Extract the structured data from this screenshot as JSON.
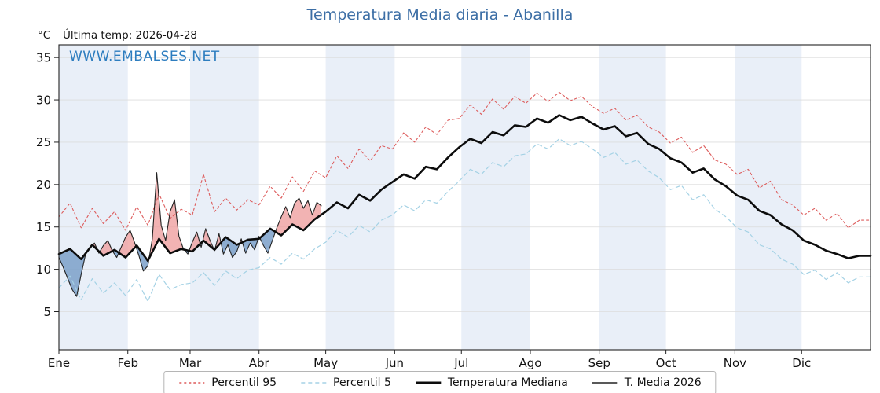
{
  "title": "Temperatura Media diaria - Abanilla",
  "unit_label": "°C",
  "last_temp_label": "Última temp: 2026-04-28",
  "watermark": "WWW.EMBALSES.NET",
  "colors": {
    "title": "#3c6ea5",
    "watermark": "#2d7dbf",
    "p95": "#dd5c5c",
    "p5": "#a5d2e5",
    "median": "#0c0c0c",
    "t2026": "#222222",
    "fill_above": "#efa0a0",
    "fill_below": "#7ba0c9",
    "month_band": "#e9eff8",
    "grid": "#dcdcdc",
    "spine": "#222222"
  },
  "chart_data": {
    "type": "line",
    "title": "Temperatura Media diaria - Abanilla",
    "xlabel": "",
    "ylabel": "°C",
    "ylim": [
      0.5,
      36.5
    ],
    "yticks": [
      5,
      10,
      15,
      20,
      25,
      30,
      35
    ],
    "grid": true,
    "legend_position": "bottom",
    "x_unit": "day_of_year",
    "days_total": 365,
    "month_labels": [
      "Ene",
      "Feb",
      "Mar",
      "Abr",
      "May",
      "Jun",
      "Jul",
      "Ago",
      "Sep",
      "Oct",
      "Nov",
      "Dic"
    ],
    "month_start_days": [
      0,
      31,
      59,
      90,
      120,
      151,
      181,
      212,
      243,
      273,
      304,
      334
    ],
    "series": [
      {
        "name": "Percentil 95",
        "key": "p95",
        "x_start": 0,
        "x_step": 5,
        "values": [
          16.2,
          17.8,
          14.9,
          17.2,
          15.4,
          16.8,
          14.6,
          17.4,
          15.2,
          18.9,
          16.0,
          17.1,
          16.4,
          21.2,
          16.8,
          18.4,
          17.0,
          18.2,
          17.6,
          19.8,
          18.4,
          20.9,
          19.2,
          21.6,
          20.8,
          23.4,
          21.9,
          24.2,
          22.8,
          24.6,
          24.2,
          26.1,
          25.0,
          26.8,
          25.9,
          27.6,
          27.8,
          29.4,
          28.3,
          30.1,
          28.9,
          30.4,
          29.6,
          30.8,
          29.8,
          30.9,
          29.9,
          30.4,
          29.2,
          28.4,
          29.0,
          27.6,
          28.2,
          26.8,
          26.2,
          24.9,
          25.6,
          23.8,
          24.6,
          22.9,
          22.4,
          21.2,
          21.8,
          19.6,
          20.4,
          18.2,
          17.6,
          16.4,
          17.2,
          15.8,
          16.6,
          14.9,
          15.8
        ]
      },
      {
        "name": "Percentil 5",
        "key": "p5",
        "x_start": 0,
        "x_step": 5,
        "values": [
          7.8,
          9.2,
          6.4,
          8.9,
          7.2,
          8.4,
          6.9,
          8.8,
          6.2,
          9.4,
          7.6,
          8.2,
          8.4,
          9.6,
          8.1,
          9.8,
          8.9,
          9.9,
          10.2,
          11.4,
          10.6,
          11.9,
          11.2,
          12.4,
          13.2,
          14.6,
          13.8,
          15.2,
          14.4,
          15.8,
          16.4,
          17.6,
          16.9,
          18.2,
          17.8,
          19.2,
          20.4,
          21.8,
          21.2,
          22.6,
          22.1,
          23.4,
          23.6,
          24.8,
          24.2,
          25.4,
          24.6,
          25.1,
          24.2,
          23.2,
          23.8,
          22.4,
          22.9,
          21.6,
          20.8,
          19.4,
          19.9,
          18.2,
          18.8,
          17.1,
          16.2,
          14.9,
          14.4,
          12.9,
          12.4,
          11.2,
          10.6,
          9.4,
          9.9,
          8.8,
          9.6,
          8.4,
          9.1
        ]
      },
      {
        "name": "Temperatura Mediana",
        "key": "median",
        "x_start": 0,
        "x_step": 5,
        "values": [
          11.8,
          12.4,
          11.2,
          12.9,
          11.6,
          12.3,
          11.4,
          12.8,
          11.0,
          13.6,
          11.9,
          12.4,
          12.1,
          13.4,
          12.3,
          13.8,
          12.9,
          13.5,
          13.6,
          14.8,
          14.0,
          15.3,
          14.6,
          15.9,
          16.8,
          17.9,
          17.2,
          18.8,
          18.1,
          19.4,
          20.3,
          21.2,
          20.7,
          22.1,
          21.8,
          23.2,
          24.4,
          25.4,
          24.9,
          26.2,
          25.8,
          27.0,
          26.8,
          27.8,
          27.3,
          28.2,
          27.6,
          28.0,
          27.2,
          26.5,
          26.9,
          25.7,
          26.1,
          24.8,
          24.2,
          23.1,
          22.6,
          21.4,
          21.9,
          20.6,
          19.8,
          18.7,
          18.2,
          16.9,
          16.4,
          15.3,
          14.6,
          13.4,
          12.9,
          12.2,
          11.8,
          11.3,
          11.6
        ]
      },
      {
        "name": "T. Media 2026",
        "key": "t2026",
        "x_start": 0,
        "x_step": 2,
        "values": [
          11.4,
          10.2,
          8.9,
          7.6,
          6.8,
          9.4,
          11.8,
          12.6,
          13.1,
          11.9,
          12.8,
          13.4,
          12.2,
          11.4,
          12.6,
          13.8,
          14.6,
          13.2,
          11.6,
          9.8,
          10.4,
          13.6,
          21.4,
          15.2,
          13.4,
          16.8,
          18.2,
          13.9,
          12.4,
          11.8,
          13.2,
          14.4,
          12.6,
          14.8,
          13.4,
          12.2,
          14.2,
          11.8,
          12.9,
          11.4,
          12.1,
          13.6,
          11.9,
          13.1,
          12.3,
          13.9,
          12.8,
          11.9,
          13.4,
          14.9,
          16.2,
          17.4,
          16.1,
          17.8,
          18.4,
          17.2,
          18.1,
          16.4,
          17.9,
          17.5
        ]
      }
    ]
  }
}
